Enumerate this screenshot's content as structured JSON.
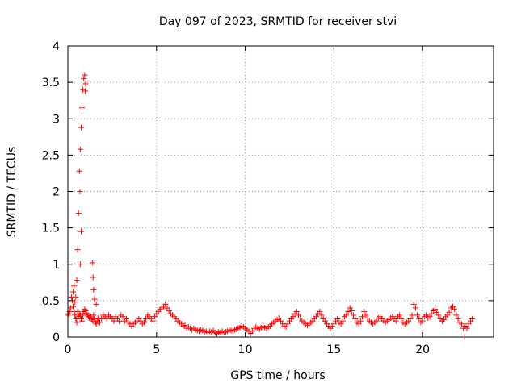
{
  "chart_data": {
    "type": "scatter",
    "title": "Day 097 of 2023, SRMTID for receiver stvi",
    "xlabel": "GPS time / hours",
    "ylabel": "SRMTID / TECUs",
    "xlim": [
      0,
      24
    ],
    "ylim": [
      0,
      4
    ],
    "xticks": [
      0,
      5,
      10,
      15,
      20
    ],
    "yticks": [
      0,
      0.5,
      1,
      1.5,
      2,
      2.5,
      3,
      3.5,
      4
    ],
    "xtick_labels": [
      "0",
      "5",
      "10",
      "15",
      "20"
    ],
    "ytick_labels": [
      "0",
      "0.5",
      "1",
      "1.5",
      "2",
      "2.5",
      "3",
      "3.5",
      "4"
    ],
    "grid": true,
    "marker": "+",
    "color": "#ff0000",
    "points": [
      [
        0.0,
        0.3
      ],
      [
        0.05,
        0.32
      ],
      [
        0.1,
        0.35
      ],
      [
        0.15,
        0.4
      ],
      [
        0.2,
        0.55
      ],
      [
        0.25,
        0.5
      ],
      [
        0.3,
        0.42
      ],
      [
        0.35,
        0.35
      ],
      [
        0.4,
        0.3
      ],
      [
        0.45,
        0.25
      ],
      [
        0.5,
        0.2
      ],
      [
        0.55,
        0.35
      ],
      [
        0.6,
        0.28
      ],
      [
        0.65,
        0.32
      ],
      [
        0.7,
        0.3
      ],
      [
        0.75,
        0.25
      ],
      [
        0.8,
        0.22
      ],
      [
        0.85,
        0.3
      ],
      [
        0.9,
        0.35
      ],
      [
        0.95,
        0.38
      ],
      [
        1.0,
        0.36
      ],
      [
        1.05,
        0.33
      ],
      [
        1.1,
        0.3
      ],
      [
        1.15,
        0.28
      ],
      [
        1.2,
        0.26
      ],
      [
        1.25,
        0.3
      ],
      [
        1.3,
        0.28
      ],
      [
        1.35,
        0.24
      ],
      [
        1.4,
        0.22
      ],
      [
        1.45,
        0.3
      ],
      [
        1.5,
        0.25
      ],
      [
        1.55,
        0.2
      ],
      [
        1.6,
        0.18
      ],
      [
        1.65,
        0.22
      ],
      [
        1.7,
        0.26
      ],
      [
        1.75,
        0.25
      ],
      [
        1.8,
        0.2
      ],
      [
        1.9,
        0.25
      ],
      [
        2.0,
        0.3
      ],
      [
        2.1,
        0.28
      ],
      [
        2.2,
        0.25
      ],
      [
        2.3,
        0.3
      ],
      [
        2.4,
        0.28
      ],
      [
        2.5,
        0.25
      ],
      [
        2.6,
        0.22
      ],
      [
        2.7,
        0.28
      ],
      [
        2.8,
        0.25
      ],
      [
        2.9,
        0.22
      ],
      [
        3.0,
        0.3
      ],
      [
        3.1,
        0.28
      ],
      [
        3.2,
        0.22
      ],
      [
        3.3,
        0.25
      ],
      [
        3.4,
        0.2
      ],
      [
        3.5,
        0.18
      ],
      [
        3.6,
        0.15
      ],
      [
        3.7,
        0.18
      ],
      [
        3.8,
        0.2
      ],
      [
        3.9,
        0.22
      ],
      [
        4.0,
        0.25
      ],
      [
        4.1,
        0.22
      ],
      [
        4.2,
        0.18
      ],
      [
        4.3,
        0.2
      ],
      [
        4.4,
        0.25
      ],
      [
        4.5,
        0.3
      ],
      [
        4.6,
        0.28
      ],
      [
        4.7,
        0.25
      ],
      [
        4.8,
        0.22
      ],
      [
        4.9,
        0.28
      ],
      [
        5.0,
        0.32
      ],
      [
        5.1,
        0.35
      ],
      [
        5.2,
        0.38
      ],
      [
        5.3,
        0.4
      ],
      [
        5.4,
        0.42
      ],
      [
        5.5,
        0.45
      ],
      [
        5.6,
        0.4
      ],
      [
        5.7,
        0.36
      ],
      [
        5.8,
        0.32
      ],
      [
        5.9,
        0.3
      ],
      [
        6.0,
        0.28
      ],
      [
        6.1,
        0.25
      ],
      [
        6.2,
        0.22
      ],
      [
        6.3,
        0.2
      ],
      [
        6.4,
        0.18
      ],
      [
        6.5,
        0.15
      ],
      [
        6.6,
        0.16
      ],
      [
        6.7,
        0.12
      ],
      [
        6.8,
        0.14
      ],
      [
        6.9,
        0.12
      ],
      [
        7.0,
        0.1
      ],
      [
        7.1,
        0.12
      ],
      [
        7.2,
        0.1
      ],
      [
        7.3,
        0.09
      ],
      [
        7.4,
        0.08
      ],
      [
        7.5,
        0.1
      ],
      [
        7.6,
        0.09
      ],
      [
        7.7,
        0.07
      ],
      [
        7.8,
        0.08
      ],
      [
        7.9,
        0.06
      ],
      [
        8.0,
        0.08
      ],
      [
        8.1,
        0.07
      ],
      [
        8.2,
        0.09
      ],
      [
        8.3,
        0.06
      ],
      [
        8.4,
        0.05
      ],
      [
        8.5,
        0.07
      ],
      [
        8.6,
        0.06
      ],
      [
        8.7,
        0.08
      ],
      [
        8.8,
        0.06
      ],
      [
        8.9,
        0.07
      ],
      [
        9.0,
        0.08
      ],
      [
        9.1,
        0.1
      ],
      [
        9.2,
        0.09
      ],
      [
        9.3,
        0.08
      ],
      [
        9.4,
        0.1
      ],
      [
        9.5,
        0.11
      ],
      [
        9.6,
        0.12
      ],
      [
        9.7,
        0.13
      ],
      [
        9.8,
        0.15
      ],
      [
        9.9,
        0.14
      ],
      [
        10.0,
        0.12
      ],
      [
        10.1,
        0.1
      ],
      [
        10.2,
        0.08
      ],
      [
        10.3,
        0.05
      ],
      [
        10.4,
        0.08
      ],
      [
        10.5,
        0.12
      ],
      [
        10.6,
        0.14
      ],
      [
        10.7,
        0.12
      ],
      [
        10.8,
        0.11
      ],
      [
        10.9,
        0.13
      ],
      [
        11.0,
        0.15
      ],
      [
        11.1,
        0.13
      ],
      [
        11.2,
        0.12
      ],
      [
        11.3,
        0.14
      ],
      [
        11.4,
        0.15
      ],
      [
        11.5,
        0.18
      ],
      [
        11.6,
        0.2
      ],
      [
        11.7,
        0.22
      ],
      [
        11.8,
        0.24
      ],
      [
        11.9,
        0.26
      ],
      [
        12.0,
        0.22
      ],
      [
        12.1,
        0.18
      ],
      [
        12.2,
        0.15
      ],
      [
        12.3,
        0.14
      ],
      [
        12.4,
        0.18
      ],
      [
        12.5,
        0.22
      ],
      [
        12.6,
        0.25
      ],
      [
        12.7,
        0.28
      ],
      [
        12.8,
        0.32
      ],
      [
        12.9,
        0.35
      ],
      [
        13.0,
        0.3
      ],
      [
        13.1,
        0.26
      ],
      [
        13.2,
        0.22
      ],
      [
        13.3,
        0.2
      ],
      [
        13.4,
        0.18
      ],
      [
        13.5,
        0.16
      ],
      [
        13.6,
        0.18
      ],
      [
        13.7,
        0.2
      ],
      [
        13.8,
        0.22
      ],
      [
        13.9,
        0.25
      ],
      [
        14.0,
        0.28
      ],
      [
        14.1,
        0.32
      ],
      [
        14.2,
        0.35
      ],
      [
        14.3,
        0.3
      ],
      [
        14.4,
        0.25
      ],
      [
        14.5,
        0.22
      ],
      [
        14.6,
        0.18
      ],
      [
        14.7,
        0.15
      ],
      [
        14.8,
        0.12
      ],
      [
        14.9,
        0.15
      ],
      [
        15.0,
        0.18
      ],
      [
        15.1,
        0.22
      ],
      [
        15.2,
        0.25
      ],
      [
        15.3,
        0.2
      ],
      [
        15.4,
        0.18
      ],
      [
        15.5,
        0.22
      ],
      [
        15.6,
        0.28
      ],
      [
        15.7,
        0.3
      ],
      [
        15.8,
        0.35
      ],
      [
        15.9,
        0.4
      ],
      [
        16.0,
        0.36
      ],
      [
        16.1,
        0.3
      ],
      [
        16.2,
        0.25
      ],
      [
        16.3,
        0.2
      ],
      [
        16.4,
        0.18
      ],
      [
        16.5,
        0.22
      ],
      [
        16.6,
        0.28
      ],
      [
        16.7,
        0.35
      ],
      [
        16.8,
        0.3
      ],
      [
        16.9,
        0.26
      ],
      [
        17.0,
        0.22
      ],
      [
        17.1,
        0.2
      ],
      [
        17.2,
        0.18
      ],
      [
        17.3,
        0.2
      ],
      [
        17.4,
        0.22
      ],
      [
        17.5,
        0.26
      ],
      [
        17.6,
        0.28
      ],
      [
        17.7,
        0.25
      ],
      [
        17.8,
        0.22
      ],
      [
        17.9,
        0.2
      ],
      [
        18.0,
        0.22
      ],
      [
        18.1,
        0.24
      ],
      [
        18.2,
        0.26
      ],
      [
        18.3,
        0.28
      ],
      [
        18.4,
        0.25
      ],
      [
        18.5,
        0.22
      ],
      [
        18.6,
        0.28
      ],
      [
        18.7,
        0.3
      ],
      [
        18.8,
        0.25
      ],
      [
        18.9,
        0.2
      ],
      [
        19.0,
        0.18
      ],
      [
        19.1,
        0.2
      ],
      [
        19.2,
        0.22
      ],
      [
        19.3,
        0.25
      ],
      [
        19.4,
        0.3
      ],
      [
        19.5,
        0.45
      ],
      [
        19.6,
        0.4
      ],
      [
        19.7,
        0.3
      ],
      [
        19.8,
        0.25
      ],
      [
        19.9,
        0.2
      ],
      [
        20.0,
        0.22
      ],
      [
        20.1,
        0.28
      ],
      [
        20.2,
        0.3
      ],
      [
        20.3,
        0.26
      ],
      [
        20.4,
        0.28
      ],
      [
        20.5,
        0.32
      ],
      [
        20.6,
        0.36
      ],
      [
        20.7,
        0.38
      ],
      [
        20.8,
        0.34
      ],
      [
        20.9,
        0.3
      ],
      [
        21.0,
        0.25
      ],
      [
        21.1,
        0.22
      ],
      [
        21.2,
        0.24
      ],
      [
        21.3,
        0.28
      ],
      [
        21.4,
        0.3
      ],
      [
        21.5,
        0.34
      ],
      [
        21.6,
        0.4
      ],
      [
        21.7,
        0.42
      ],
      [
        21.8,
        0.38
      ],
      [
        21.9,
        0.3
      ],
      [
        22.0,
        0.25
      ],
      [
        22.1,
        0.2
      ],
      [
        22.2,
        0.18
      ],
      [
        22.3,
        0.12
      ],
      [
        22.35,
        0.0
      ],
      [
        22.4,
        0.15
      ],
      [
        22.5,
        0.12
      ],
      [
        22.6,
        0.18
      ],
      [
        22.7,
        0.22
      ],
      [
        22.8,
        0.25
      ],
      [
        0.3,
        0.62
      ],
      [
        0.35,
        0.7
      ],
      [
        0.4,
        0.48
      ],
      [
        0.45,
        0.55
      ],
      [
        0.5,
        0.78
      ],
      [
        0.55,
        1.2
      ],
      [
        0.6,
        1.7
      ],
      [
        0.65,
        2.28
      ],
      [
        0.7,
        2.58
      ],
      [
        0.75,
        2.88
      ],
      [
        0.8,
        3.15
      ],
      [
        0.85,
        3.4
      ],
      [
        0.9,
        3.55
      ],
      [
        0.95,
        3.6
      ],
      [
        1.0,
        3.48
      ],
      [
        0.98,
        3.38
      ],
      [
        0.75,
        1.45
      ],
      [
        0.7,
        1.0
      ],
      [
        0.68,
        2.0
      ],
      [
        1.4,
        1.02
      ],
      [
        1.42,
        0.82
      ],
      [
        1.45,
        0.65
      ],
      [
        1.5,
        0.52
      ],
      [
        1.6,
        0.45
      ]
    ]
  }
}
